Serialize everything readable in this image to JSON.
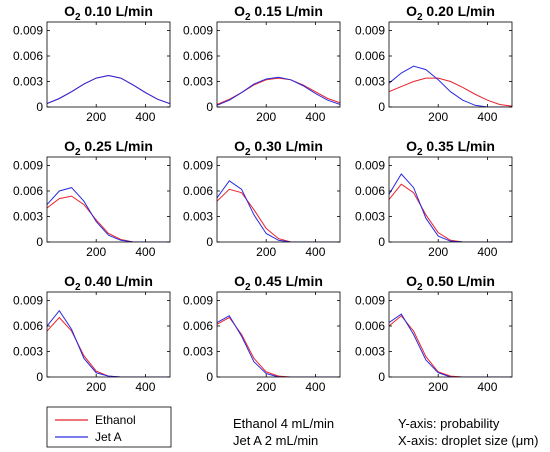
{
  "chart_data": [
    {
      "type": "line",
      "title_prefix": "O",
      "title_sub": "2",
      "title_value": "0.10 L/min",
      "xlim": [
        0,
        500
      ],
      "ylim": [
        0,
        0.01
      ],
      "xticks": [
        200,
        400
      ],
      "yticks": [
        0,
        0.003,
        0.006,
        0.009
      ],
      "ytick_labels": [
        "0",
        "0.003",
        "0.006",
        "0.009"
      ],
      "series": [
        {
          "name": "Ethanol",
          "color": "#e8232b",
          "x": [
            0,
            50,
            100,
            150,
            200,
            250,
            300,
            350,
            400,
            450,
            500
          ],
          "y": [
            0.0004,
            0.001,
            0.0018,
            0.0027,
            0.0034,
            0.0037,
            0.0034,
            0.0026,
            0.0017,
            0.0009,
            0.0004
          ]
        },
        {
          "name": "Jet A",
          "color": "#2a2ae0",
          "x": [
            0,
            50,
            100,
            150,
            200,
            250,
            300,
            350,
            400,
            450,
            500
          ],
          "y": [
            0.0004,
            0.001,
            0.0018,
            0.0027,
            0.0034,
            0.0037,
            0.0034,
            0.0026,
            0.0017,
            0.0009,
            0.0004
          ]
        }
      ]
    },
    {
      "type": "line",
      "title_prefix": "O",
      "title_sub": "2",
      "title_value": "0.15 L/min",
      "xlim": [
        0,
        500
      ],
      "ylim": [
        0,
        0.01
      ],
      "xticks": [
        200,
        400
      ],
      "yticks": [
        0,
        0.003,
        0.006,
        0.009
      ],
      "ytick_labels": [
        "0",
        "0.003",
        "0.006",
        "0.009"
      ],
      "series": [
        {
          "name": "Ethanol",
          "color": "#e8232b",
          "x": [
            0,
            50,
            100,
            150,
            200,
            250,
            300,
            350,
            400,
            450,
            500
          ],
          "y": [
            0.0003,
            0.0009,
            0.0017,
            0.0026,
            0.0032,
            0.0034,
            0.0032,
            0.0026,
            0.0018,
            0.001,
            0.0005
          ]
        },
        {
          "name": "Jet A",
          "color": "#2a2ae0",
          "x": [
            0,
            50,
            100,
            150,
            200,
            250,
            300,
            350,
            400,
            450,
            500
          ],
          "y": [
            0.0002,
            0.0008,
            0.0017,
            0.0027,
            0.0033,
            0.0035,
            0.0032,
            0.0025,
            0.0016,
            0.0008,
            0.0003
          ]
        }
      ]
    },
    {
      "type": "line",
      "title_prefix": "O",
      "title_sub": "2",
      "title_value": "0.20 L/min",
      "xlim": [
        0,
        500
      ],
      "ylim": [
        0,
        0.01
      ],
      "xticks": [
        200,
        400
      ],
      "yticks": [
        0,
        0.003,
        0.006,
        0.009
      ],
      "ytick_labels": [
        "0",
        "0.003",
        "0.006",
        "0.009"
      ],
      "series": [
        {
          "name": "Ethanol",
          "color": "#e8232b",
          "x": [
            0,
            50,
            100,
            150,
            200,
            250,
            300,
            350,
            400,
            450,
            500
          ],
          "y": [
            0.0018,
            0.0024,
            0.003,
            0.0034,
            0.0034,
            0.003,
            0.0023,
            0.0015,
            0.0008,
            0.0003,
            0.0001
          ]
        },
        {
          "name": "Jet A",
          "color": "#2a2ae0",
          "x": [
            0,
            50,
            100,
            150,
            200,
            250,
            300,
            350,
            400,
            450,
            500
          ],
          "y": [
            0.0028,
            0.004,
            0.0048,
            0.0044,
            0.0032,
            0.0018,
            0.0008,
            0.0002,
            0.0,
            0.0,
            0.0
          ]
        }
      ]
    },
    {
      "type": "line",
      "title_prefix": "O",
      "title_sub": "2",
      "title_value": "0.25 L/min",
      "xlim": [
        0,
        500
      ],
      "ylim": [
        0,
        0.01
      ],
      "xticks": [
        200,
        400
      ],
      "yticks": [
        0,
        0.003,
        0.006,
        0.009
      ],
      "ytick_labels": [
        "0",
        "0.003",
        "0.006",
        "0.009"
      ],
      "series": [
        {
          "name": "Ethanol",
          "color": "#e8232b",
          "x": [
            0,
            50,
            100,
            150,
            200,
            250,
            300,
            350,
            400,
            450,
            500
          ],
          "y": [
            0.004,
            0.0051,
            0.0054,
            0.0044,
            0.0026,
            0.001,
            0.0003,
            0.0,
            0.0,
            0.0,
            0.0
          ]
        },
        {
          "name": "Jet A",
          "color": "#2a2ae0",
          "x": [
            0,
            50,
            100,
            150,
            200,
            250,
            300,
            350,
            400,
            450,
            500
          ],
          "y": [
            0.0044,
            0.006,
            0.0064,
            0.0048,
            0.0024,
            0.0008,
            0.0002,
            0.0,
            0.0,
            0.0,
            0.0
          ]
        }
      ]
    },
    {
      "type": "line",
      "title_prefix": "O",
      "title_sub": "2",
      "title_value": "0.30 L/min",
      "xlim": [
        0,
        500
      ],
      "ylim": [
        0,
        0.01
      ],
      "xticks": [
        200,
        400
      ],
      "yticks": [
        0,
        0.003,
        0.006,
        0.009
      ],
      "ytick_labels": [
        "0",
        "0.003",
        "0.006",
        "0.009"
      ],
      "series": [
        {
          "name": "Ethanol",
          "color": "#e8232b",
          "x": [
            0,
            50,
            100,
            150,
            200,
            250,
            300,
            350,
            400,
            450,
            500
          ],
          "y": [
            0.0048,
            0.0062,
            0.0058,
            0.0038,
            0.0016,
            0.0004,
            0.0,
            0.0,
            0.0,
            0.0,
            0.0
          ]
        },
        {
          "name": "Jet A",
          "color": "#2a2ae0",
          "x": [
            0,
            50,
            100,
            150,
            200,
            250,
            300,
            350,
            400,
            450,
            500
          ],
          "y": [
            0.0052,
            0.0072,
            0.0062,
            0.0032,
            0.001,
            0.0002,
            0.0,
            0.0,
            0.0,
            0.0,
            0.0
          ]
        }
      ]
    },
    {
      "type": "line",
      "title_prefix": "O",
      "title_sub": "2",
      "title_value": "0.35 L/min",
      "xlim": [
        0,
        500
      ],
      "ylim": [
        0,
        0.01
      ],
      "xticks": [
        200,
        400
      ],
      "yticks": [
        0,
        0.003,
        0.006,
        0.009
      ],
      "ytick_labels": [
        "0",
        "0.003",
        "0.006",
        "0.009"
      ],
      "series": [
        {
          "name": "Ethanol",
          "color": "#e8232b",
          "x": [
            0,
            50,
            100,
            150,
            200,
            250,
            300,
            350,
            400,
            450,
            500
          ],
          "y": [
            0.005,
            0.0068,
            0.0058,
            0.0032,
            0.0011,
            0.0002,
            0.0,
            0.0,
            0.0,
            0.0,
            0.0
          ]
        },
        {
          "name": "Jet A",
          "color": "#2a2ae0",
          "x": [
            0,
            50,
            100,
            150,
            200,
            250,
            300,
            350,
            400,
            450,
            500
          ],
          "y": [
            0.0056,
            0.008,
            0.0064,
            0.0028,
            0.0007,
            0.0001,
            0.0,
            0.0,
            0.0,
            0.0,
            0.0
          ]
        }
      ]
    },
    {
      "type": "line",
      "title_prefix": "O",
      "title_sub": "2",
      "title_value": "0.40 L/min",
      "xlim": [
        0,
        500
      ],
      "ylim": [
        0,
        0.01
      ],
      "xticks": [
        200,
        400
      ],
      "yticks": [
        0,
        0.003,
        0.006,
        0.009
      ],
      "ytick_labels": [
        "0",
        "0.003",
        "0.006",
        "0.009"
      ],
      "series": [
        {
          "name": "Ethanol",
          "color": "#e8232b",
          "x": [
            0,
            50,
            100,
            150,
            200,
            250,
            300,
            350,
            400,
            450,
            500
          ],
          "y": [
            0.0054,
            0.007,
            0.0054,
            0.0025,
            0.0007,
            0.0001,
            0.0,
            0.0,
            0.0,
            0.0,
            0.0
          ]
        },
        {
          "name": "Jet A",
          "color": "#2a2ae0",
          "x": [
            0,
            50,
            100,
            150,
            200,
            250,
            300,
            350,
            400,
            450,
            500
          ],
          "y": [
            0.006,
            0.0078,
            0.0056,
            0.0022,
            0.0005,
            0.0001,
            0.0,
            0.0,
            0.0,
            0.0,
            0.0
          ]
        }
      ]
    },
    {
      "type": "line",
      "title_prefix": "O",
      "title_sub": "2",
      "title_value": "0.45 L/min",
      "xlim": [
        0,
        500
      ],
      "ylim": [
        0,
        0.01
      ],
      "xticks": [
        200,
        400
      ],
      "yticks": [
        0,
        0.003,
        0.006,
        0.009
      ],
      "ytick_labels": [
        "0",
        "0.003",
        "0.006",
        "0.009"
      ],
      "series": [
        {
          "name": "Ethanol",
          "color": "#e8232b",
          "x": [
            0,
            50,
            100,
            150,
            200,
            250,
            300,
            350,
            400,
            450,
            500
          ],
          "y": [
            0.0062,
            0.007,
            0.005,
            0.0022,
            0.0006,
            0.0001,
            0.0,
            0.0,
            0.0,
            0.0,
            0.0
          ]
        },
        {
          "name": "Jet A",
          "color": "#2a2ae0",
          "x": [
            0,
            50,
            100,
            150,
            200,
            250,
            300,
            350,
            400,
            450,
            500
          ],
          "y": [
            0.0064,
            0.0072,
            0.0048,
            0.0018,
            0.0004,
            0.0,
            0.0,
            0.0,
            0.0,
            0.0,
            0.0
          ]
        }
      ]
    },
    {
      "type": "line",
      "title_prefix": "O",
      "title_sub": "2",
      "title_value": "0.50 L/min",
      "xlim": [
        0,
        500
      ],
      "ylim": [
        0,
        0.01
      ],
      "xticks": [
        200,
        400
      ],
      "yticks": [
        0,
        0.003,
        0.006,
        0.009
      ],
      "ytick_labels": [
        "0",
        "0.003",
        "0.006",
        "0.009"
      ],
      "series": [
        {
          "name": "Ethanol",
          "color": "#e8232b",
          "x": [
            0,
            50,
            100,
            150,
            200,
            250,
            300,
            350,
            400,
            450,
            500
          ],
          "y": [
            0.006,
            0.0072,
            0.0054,
            0.0024,
            0.0006,
            0.0001,
            0.0,
            0.0,
            0.0,
            0.0,
            0.0
          ]
        },
        {
          "name": "Jet A",
          "color": "#2a2ae0",
          "x": [
            0,
            50,
            100,
            150,
            200,
            250,
            300,
            350,
            400,
            450,
            500
          ],
          "y": [
            0.0064,
            0.0074,
            0.005,
            0.002,
            0.0005,
            0.0,
            0.0,
            0.0,
            0.0,
            0.0,
            0.0
          ]
        }
      ]
    }
  ],
  "legend": {
    "items": [
      {
        "label": "Ethanol",
        "color": "#e8232b"
      },
      {
        "label": "Jet A",
        "color": "#2a2ae0"
      }
    ]
  },
  "notes": {
    "flow_ethanol": "Ethanol 4 mL/min",
    "flow_jeta": "Jet A 2 mL/min",
    "y_axis": "Y-axis: probability",
    "x_axis": "X-axis: droplet size (μm)"
  }
}
